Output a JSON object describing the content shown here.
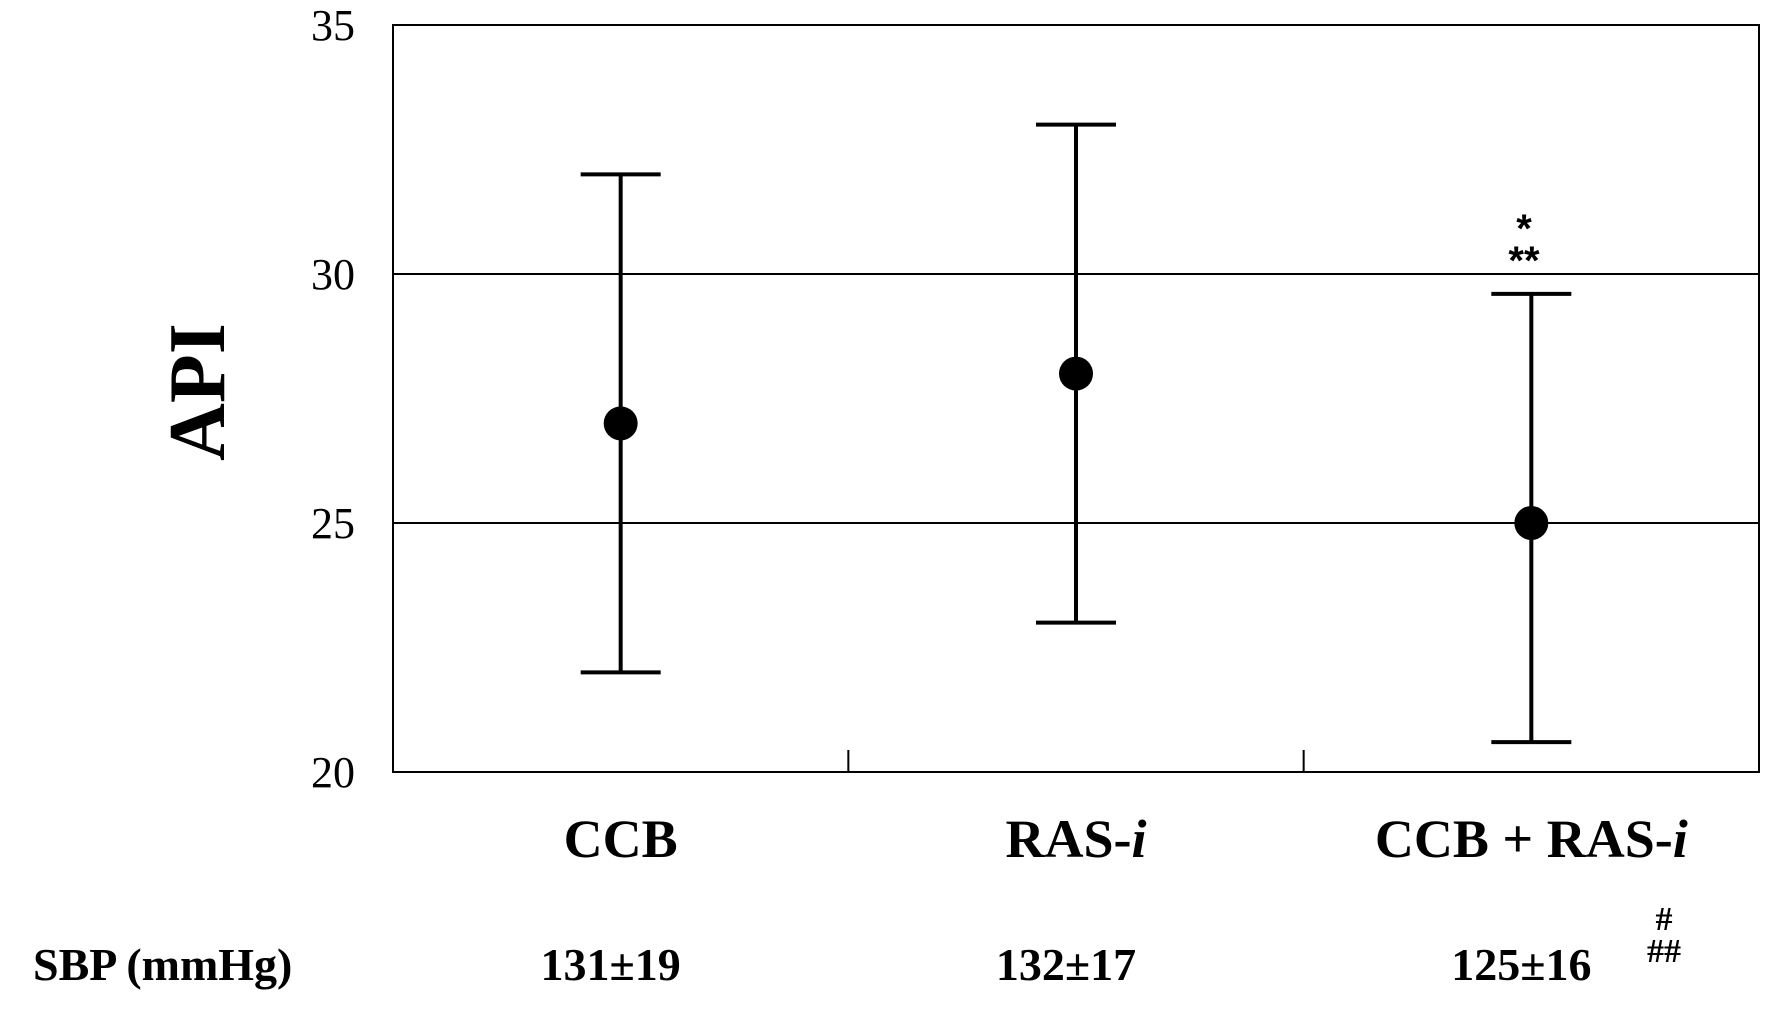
{
  "chart_data": {
    "type": "scatter",
    "ylabel": "API",
    "ylim": [
      20,
      35
    ],
    "yticks": [
      "20",
      "25",
      "30",
      "35"
    ],
    "gridlines_y": [
      25,
      30
    ],
    "categories": [
      {
        "label": "CCB",
        "italic_suffix": ""
      },
      {
        "label": "RAS-",
        "italic_suffix": "i"
      },
      {
        "label": "CCB + RAS-",
        "italic_suffix": "i"
      }
    ],
    "series": [
      {
        "points": [
          {
            "category": "CCB",
            "mean": 27.0,
            "lower": 22.0,
            "upper": 32.0
          },
          {
            "category": "RAS-i",
            "mean": 28.0,
            "lower": 23.0,
            "upper": 33.0
          },
          {
            "category": "CCB + RAS-i",
            "mean": 25.0,
            "lower": 20.6,
            "upper": 29.6
          }
        ]
      }
    ],
    "significance": {
      "category": "CCB + RAS-i",
      "top": "*",
      "bottom": "**"
    },
    "sbp_row": {
      "label": "SBP (mmHg)",
      "values": [
        "131±19",
        "132±17",
        "125±16"
      ],
      "last_marks_top": "#",
      "last_marks_bottom": "##"
    }
  }
}
